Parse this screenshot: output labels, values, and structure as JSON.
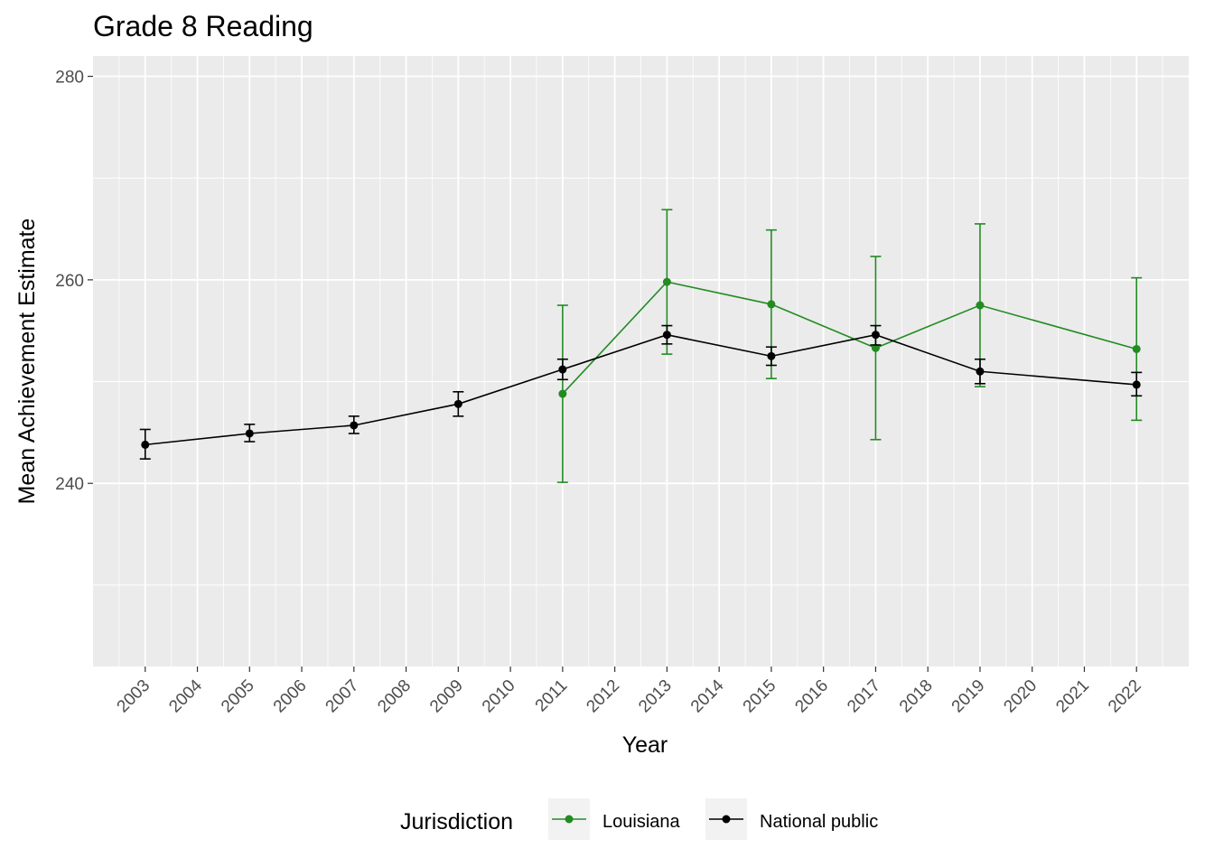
{
  "chart_data": {
    "type": "line",
    "title": "Grade 8 Reading",
    "xlabel": "Year",
    "ylabel": "Mean Achievement Estimate",
    "xlim": [
      2002,
      2023
    ],
    "ylim": [
      222,
      282
    ],
    "x_ticks": [
      "2003",
      "2004",
      "2005",
      "2006",
      "2007",
      "2008",
      "2009",
      "2010",
      "2011",
      "2012",
      "2013",
      "2014",
      "2015",
      "2016",
      "2017",
      "2018",
      "2019",
      "2020",
      "2021",
      "2022"
    ],
    "y_ticks": [
      240,
      260,
      280
    ],
    "grid": true,
    "legend_title": "Jurisdiction",
    "legend_position": "bottom",
    "series": [
      {
        "name": "Louisiana",
        "color": "#228B22",
        "x": [
          2011,
          2013,
          2015,
          2017,
          2019,
          2022
        ],
        "values": [
          248.8,
          259.8,
          257.6,
          253.3,
          257.5,
          253.2
        ],
        "lower": [
          240.1,
          252.7,
          250.3,
          244.3,
          249.5,
          246.2
        ],
        "upper": [
          257.5,
          266.9,
          264.9,
          262.3,
          265.5,
          260.2
        ]
      },
      {
        "name": "National public",
        "color": "#000000",
        "x": [
          2003,
          2005,
          2007,
          2009,
          2011,
          2013,
          2015,
          2017,
          2019,
          2022
        ],
        "values": [
          243.8,
          244.9,
          245.7,
          247.8,
          251.2,
          254.6,
          252.5,
          254.6,
          251.0,
          249.7
        ],
        "lower": [
          242.4,
          244.1,
          244.9,
          246.6,
          250.2,
          253.7,
          251.6,
          253.6,
          249.8,
          248.6
        ],
        "upper": [
          245.3,
          245.8,
          246.6,
          249.0,
          252.2,
          255.5,
          253.4,
          255.5,
          252.2,
          250.9
        ]
      }
    ]
  }
}
